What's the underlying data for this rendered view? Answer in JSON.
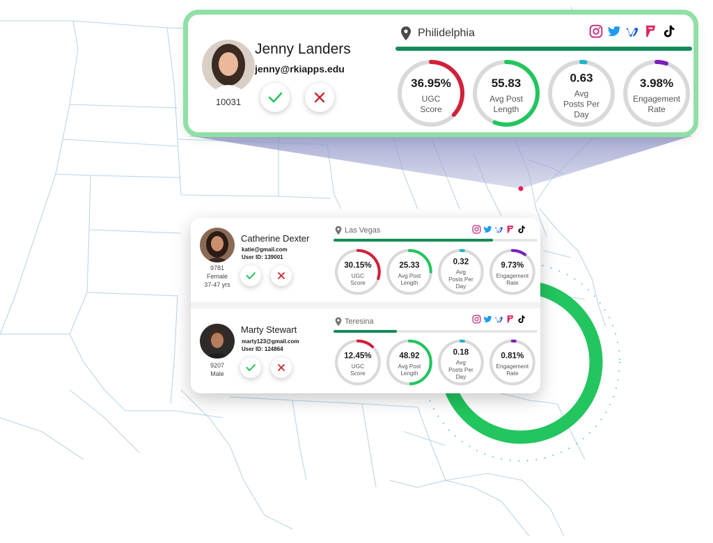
{
  "colors": {
    "accent_green": "#22c55e",
    "bar_green": "#168a58",
    "ring_red": "#d1213b",
    "ring_green": "#22c55e",
    "ring_teal": "#1fb5c8",
    "ring_purple": "#7b1fbf",
    "ring_track": "#d9d9d9",
    "reject_red": "#c62828",
    "border_green": "#8fdfa6",
    "map_line": "#b8d6ea",
    "instagram": "#c13584",
    "twitter": "#1d9bf0",
    "vimeo": "#1a5bd6",
    "foursquare": "#e0245e",
    "tiktok": "#000000"
  },
  "social_icons": [
    "instagram-icon",
    "twitter-icon",
    "vimeo-icon",
    "foursquare-icon",
    "tiktok-icon"
  ],
  "featured": {
    "name": "Jenny Landers",
    "email": "jenny@rkiapps.edu",
    "user_number": "10031",
    "location": "Philidelphia",
    "location_progress": 1.0,
    "metrics": [
      {
        "value": "36.95%",
        "label": [
          "UGC",
          "Score"
        ],
        "fraction": 0.37,
        "color": "#d1213b"
      },
      {
        "value": "55.83",
        "label": [
          "Avg Post",
          "Length"
        ],
        "fraction": 0.56,
        "color": "#22c55e"
      },
      {
        "value": "0.63",
        "label": [
          "Avg",
          "Posts Per",
          "Day"
        ],
        "fraction": 0.02,
        "color": "#1fb5c8"
      },
      {
        "value": "3.98%",
        "label": [
          "Engagement",
          "Rate"
        ],
        "fraction": 0.05,
        "color": "#7b1fbf"
      }
    ]
  },
  "users": [
    {
      "name": "Catherine Dexter",
      "email": "katie@gmail.com",
      "user_id": "User ID: 139001",
      "meta": [
        "9781",
        "Female",
        "37-47 yrs"
      ],
      "location": "Las Vegas",
      "location_progress": 0.78,
      "metrics": [
        {
          "value": "30.15%",
          "label": [
            "UGC",
            "Score"
          ],
          "fraction": 0.3,
          "color": "#d1213b"
        },
        {
          "value": "25.33",
          "label": [
            "Avg Post",
            "Length"
          ],
          "fraction": 0.25,
          "color": "#22c55e"
        },
        {
          "value": "0.32",
          "label": [
            "Avg",
            "Posts Per",
            "Day"
          ],
          "fraction": 0.02,
          "color": "#1fb5c8"
        },
        {
          "value": "9.73%",
          "label": [
            "Engagement",
            "Rate"
          ],
          "fraction": 0.1,
          "color": "#7b1fbf"
        }
      ]
    },
    {
      "name": "Marty Stewart",
      "email": "marty123@gmail.com",
      "user_id": "User ID: 124864",
      "meta": [
        "9207",
        "Male"
      ],
      "location": "Teresina",
      "location_progress": 0.31,
      "metrics": [
        {
          "value": "12.45%",
          "label": [
            "UGC",
            "Score"
          ],
          "fraction": 0.12,
          "color": "#d1213b"
        },
        {
          "value": "48.92",
          "label": [
            "Avg Post",
            "Length"
          ],
          "fraction": 0.49,
          "color": "#22c55e"
        },
        {
          "value": "0.18",
          "label": [
            "Avg",
            "Posts Per",
            "Day"
          ],
          "fraction": 0.02,
          "color": "#1fb5c8"
        },
        {
          "value": "0.81%",
          "label": [
            "Engagement",
            "Rate"
          ],
          "fraction": 0.02,
          "color": "#7b1fbf"
        }
      ]
    }
  ]
}
